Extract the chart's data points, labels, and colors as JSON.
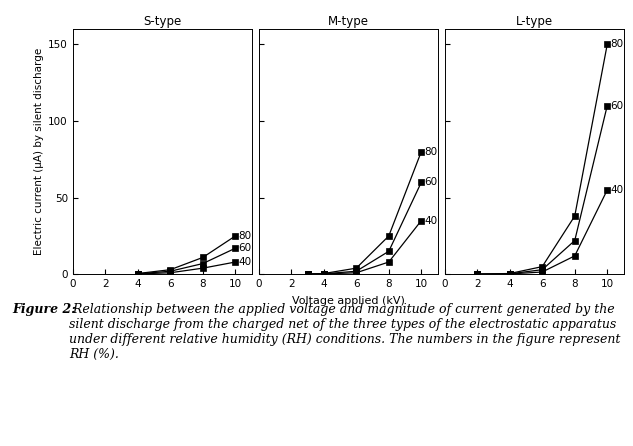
{
  "panels": [
    {
      "title": "S-type",
      "series": [
        {
          "label": "80",
          "x": [
            4,
            6,
            8,
            10
          ],
          "y": [
            0.5,
            3,
            11,
            25
          ]
        },
        {
          "label": "60",
          "x": [
            4,
            6,
            8,
            10
          ],
          "y": [
            0.3,
            2,
            7,
            17
          ]
        },
        {
          "label": "40",
          "x": [
            4,
            6,
            8,
            10
          ],
          "y": [
            0.2,
            1.0,
            4,
            8
          ]
        }
      ],
      "xlim": [
        0,
        11
      ],
      "ylim": [
        0,
        160
      ],
      "xticks": [
        0,
        2,
        4,
        6,
        8,
        10
      ],
      "yticks": [
        0,
        50,
        100,
        150
      ]
    },
    {
      "title": "M-type",
      "series": [
        {
          "label": "80",
          "x": [
            3,
            4,
            6,
            8,
            10
          ],
          "y": [
            0.2,
            0.5,
            4,
            25,
            80
          ]
        },
        {
          "label": "60",
          "x": [
            3,
            4,
            6,
            8,
            10
          ],
          "y": [
            0.1,
            0.3,
            2,
            15,
            60
          ]
        },
        {
          "label": "40",
          "x": [
            3,
            4,
            6,
            8,
            10
          ],
          "y": [
            0.05,
            0.2,
            1,
            8,
            35
          ]
        }
      ],
      "xlim": [
        0,
        11
      ],
      "ylim": [
        0,
        160
      ],
      "xticks": [
        0,
        2,
        4,
        6,
        8,
        10
      ],
      "yticks": [
        0,
        50,
        100,
        150
      ]
    },
    {
      "title": "L-type",
      "series": [
        {
          "label": "80",
          "x": [
            2,
            4,
            6,
            8,
            10
          ],
          "y": [
            0.2,
            0.5,
            5,
            38,
            150
          ]
        },
        {
          "label": "60",
          "x": [
            2,
            4,
            6,
            8,
            10
          ],
          "y": [
            0.1,
            0.3,
            3,
            22,
            110
          ]
        },
        {
          "label": "40",
          "x": [
            2,
            4,
            6,
            8,
            10
          ],
          "y": [
            0.05,
            0.2,
            1.5,
            12,
            55
          ]
        }
      ],
      "xlim": [
        0,
        11
      ],
      "ylim": [
        0,
        160
      ],
      "xticks": [
        0,
        2,
        4,
        6,
        8,
        10
      ],
      "yticks": [
        0,
        50,
        100,
        150
      ]
    }
  ],
  "ylabel": "Electric current (μA) by silent discharge",
  "xlabel": "Voltage applied (kV)",
  "line_color": "black",
  "marker": "s",
  "markersize": 4,
  "linewidth": 0.9,
  "title_fontsize": 8.5,
  "ylabel_fontsize": 7.5,
  "xlabel_fontsize": 8,
  "tick_fontsize": 7.5,
  "annot_fontsize": 7.5,
  "caption_bold": "Figure 2:",
  "caption_rest": " Relationship between the applied voltage and magnitude of current generated by the silent discharge from the charged net of the three types of the electrostatic apparatus under different relative humidity (RH) conditions. The numbers in the figure represent RH (%).",
  "caption_fontsize": 9
}
